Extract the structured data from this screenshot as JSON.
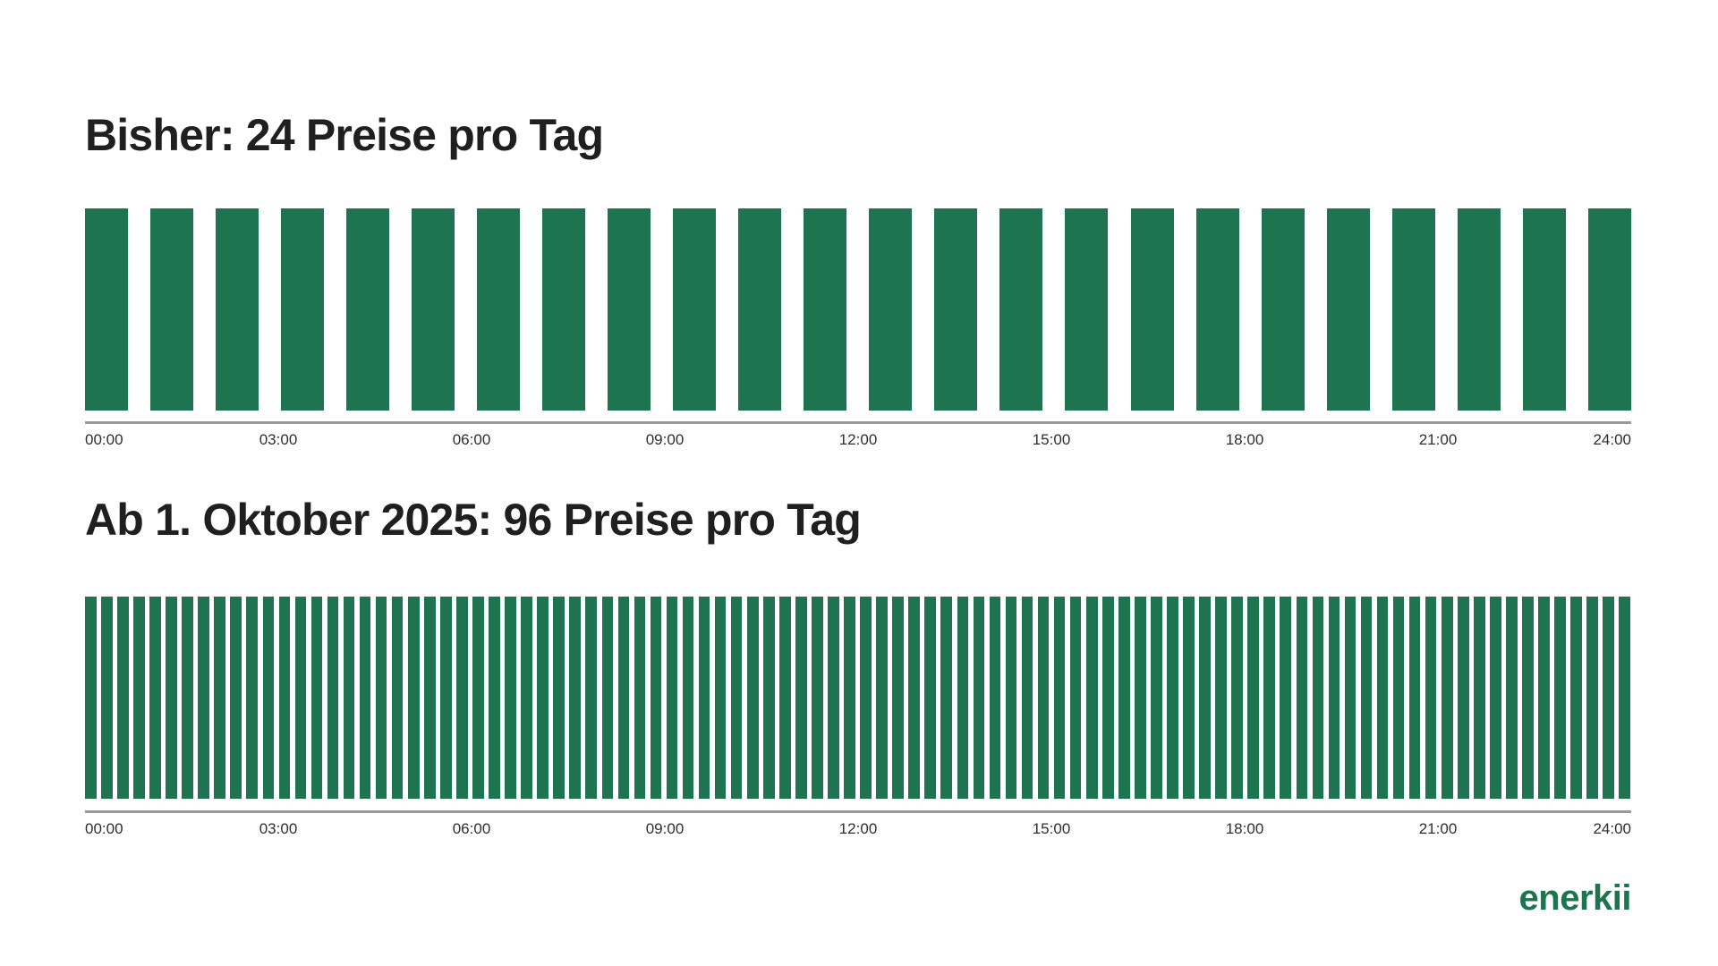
{
  "page": {
    "background_color": "#ffffff"
  },
  "accent_color": "#1E7450",
  "charts": [
    {
      "title": "Bisher: 24 Preise pro Tag",
      "bar_count": 24,
      "bar_color": "#1E7450",
      "axis_line_color": "#9a9a9a",
      "tick_labels": [
        "00:00",
        "03:00",
        "06:00",
        "09:00",
        "12:00",
        "15:00",
        "18:00",
        "21:00",
        "24:00"
      ]
    },
    {
      "title": "Ab 1. Oktober 2025: 96 Preise pro Tag",
      "bar_count": 96,
      "bar_color": "#1E7450",
      "axis_line_color": "#9a9a9a",
      "tick_labels": [
        "00:00",
        "03:00",
        "06:00",
        "09:00",
        "12:00",
        "15:00",
        "18:00",
        "21:00",
        "24:00"
      ]
    }
  ],
  "chart_data": [
    {
      "type": "bar",
      "title": "Bisher: 24 Preise pro Tag",
      "bar_count": 24,
      "interval_minutes": 60,
      "uniform_bar_height": 1,
      "x_range_hours": [
        0,
        24
      ],
      "x_tick_labels": [
        "00:00",
        "03:00",
        "06:00",
        "09:00",
        "12:00",
        "15:00",
        "18:00",
        "21:00",
        "24:00"
      ],
      "bar_color": "#1E7450",
      "grid": false,
      "legend": false,
      "y_axis_shown": false
    },
    {
      "type": "bar",
      "title": "Ab 1. Oktober 2025: 96 Preise pro Tag",
      "bar_count": 96,
      "interval_minutes": 15,
      "uniform_bar_height": 1,
      "x_range_hours": [
        0,
        24
      ],
      "x_tick_labels": [
        "00:00",
        "03:00",
        "06:00",
        "09:00",
        "12:00",
        "15:00",
        "18:00",
        "21:00",
        "24:00"
      ],
      "bar_color": "#1E7450",
      "grid": false,
      "legend": false,
      "y_axis_shown": false
    }
  ],
  "footer": {
    "logo_text": "enerkii",
    "logo_color": "#1E7450"
  }
}
